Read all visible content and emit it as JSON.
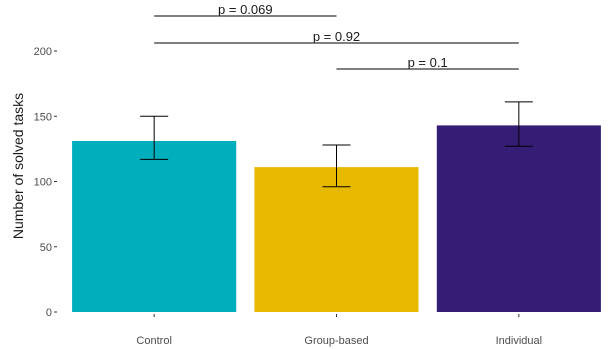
{
  "chart_data": {
    "type": "bar",
    "categories": [
      "Control",
      "Group-based",
      "Individual"
    ],
    "values": [
      131,
      111,
      143
    ],
    "error_bars": [
      {
        "lower": 117,
        "upper": 150
      },
      {
        "lower": 96,
        "upper": 128
      },
      {
        "lower": 127,
        "upper": 161
      }
    ],
    "colors": [
      "#00AFBB",
      "#E7B800",
      "#351C75"
    ],
    "xlabel": "",
    "ylabel": "Number of solved tasks",
    "y_ticks": [
      0,
      50,
      100,
      150,
      200
    ],
    "ylim": [
      0,
      225
    ],
    "grid": false,
    "significance": [
      {
        "from": 0,
        "to": 1,
        "label": "p = 0.069"
      },
      {
        "from": 0,
        "to": 2,
        "label": "p = 0.92"
      },
      {
        "from": 1,
        "to": 2,
        "label": "p = 0.1"
      }
    ]
  }
}
